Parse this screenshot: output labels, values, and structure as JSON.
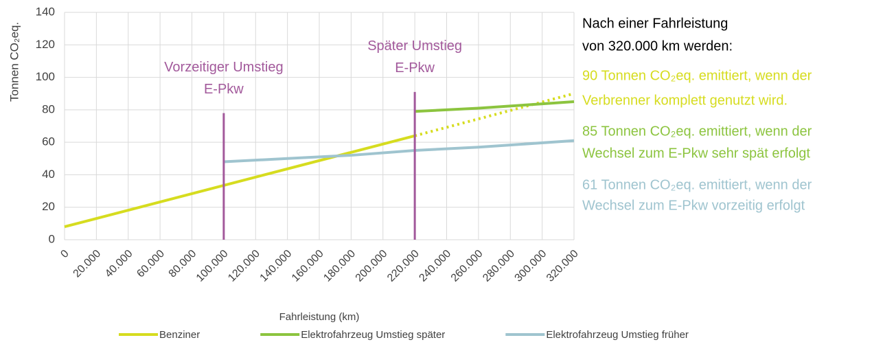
{
  "chart_data": {
    "type": "line",
    "y_label": "Tonnen CO₂eq.",
    "x_label": "Fahrleistung (km)",
    "xlim": [
      0,
      320000
    ],
    "xticks": [
      0,
      {
        "value": 20000,
        "label": "20.000"
      },
      {
        "value": 40000,
        "label": "40.000"
      },
      {
        "value": 60000,
        "label": "60.000"
      },
      {
        "value": 80000,
        "label": "80.000"
      },
      {
        "value": 100000,
        "label": "100.000"
      },
      {
        "value": 120000,
        "label": "120.000"
      },
      {
        "value": 140000,
        "label": "140.000"
      },
      {
        "value": 160000,
        "label": "160.000"
      },
      {
        "value": 180000,
        "label": "180.000"
      },
      {
        "value": 200000,
        "label": "200.000"
      },
      {
        "value": 220000,
        "label": "220.000"
      },
      {
        "value": 240000,
        "label": "240.000"
      },
      {
        "value": 260000,
        "label": "260.000"
      },
      {
        "value": 280000,
        "label": "280.000"
      },
      {
        "value": 300000,
        "label": "300.000"
      },
      {
        "value": 320000,
        "label": "320.000"
      }
    ],
    "ylim": [
      0,
      140
    ],
    "yticks": [
      0,
      20,
      40,
      60,
      80,
      100,
      120,
      140
    ],
    "grid": true,
    "legend": "bottom",
    "series": [
      {
        "name": "Benziner",
        "color": "#d6dc1f",
        "x": [
          0,
          220000,
          320000
        ],
        "values": [
          8,
          64,
          90
        ],
        "dotted_from_index": 1
      },
      {
        "name": "Elektrofahrzeug Umstieg später",
        "color": "#8cc43f",
        "x": [
          220000,
          260000,
          290000,
          320000
        ],
        "values": [
          79,
          81,
          83,
          85
        ]
      },
      {
        "name": "Elektrofahrzeug Umstieg früher",
        "color": "#9fc4cf",
        "x": [
          100000,
          140000,
          180000,
          220000,
          260000,
          320000
        ],
        "values": [
          48,
          50,
          52,
          55,
          57,
          61
        ]
      }
    ],
    "switch_lines": [
      {
        "x": 100000,
        "top": 78,
        "label": [
          "Vorzeitiger Umstieg",
          "E-Pkw"
        ],
        "color": "#a2599b"
      },
      {
        "x": 220000,
        "top": 91,
        "label": [
          "Später Umstieg",
          "E-Pkw"
        ],
        "color": "#a2599b"
      }
    ],
    "notes": [
      {
        "lines": [
          "Nach einer Fahrleistung",
          "von 320.000 km werden:"
        ],
        "color": "#000000"
      },
      {
        "lines": [
          "90 Tonnen CO₂eq. emittiert, wenn der",
          "Verbrenner komplett genutzt wird."
        ],
        "color": "#d6dc1f"
      },
      {
        "lines": [
          "85 Tonnen CO₂eq. emittiert, wenn der",
          "Wechsel zum E-Pkw sehr spät erfolgt"
        ],
        "color": "#8cc43f"
      },
      {
        "lines": [
          "61 Tonnen CO₂eq. emittiert, wenn der",
          "Wechsel zum E-Pkw vorzeitig erfolgt"
        ],
        "color": "#9fc4cf"
      }
    ]
  }
}
